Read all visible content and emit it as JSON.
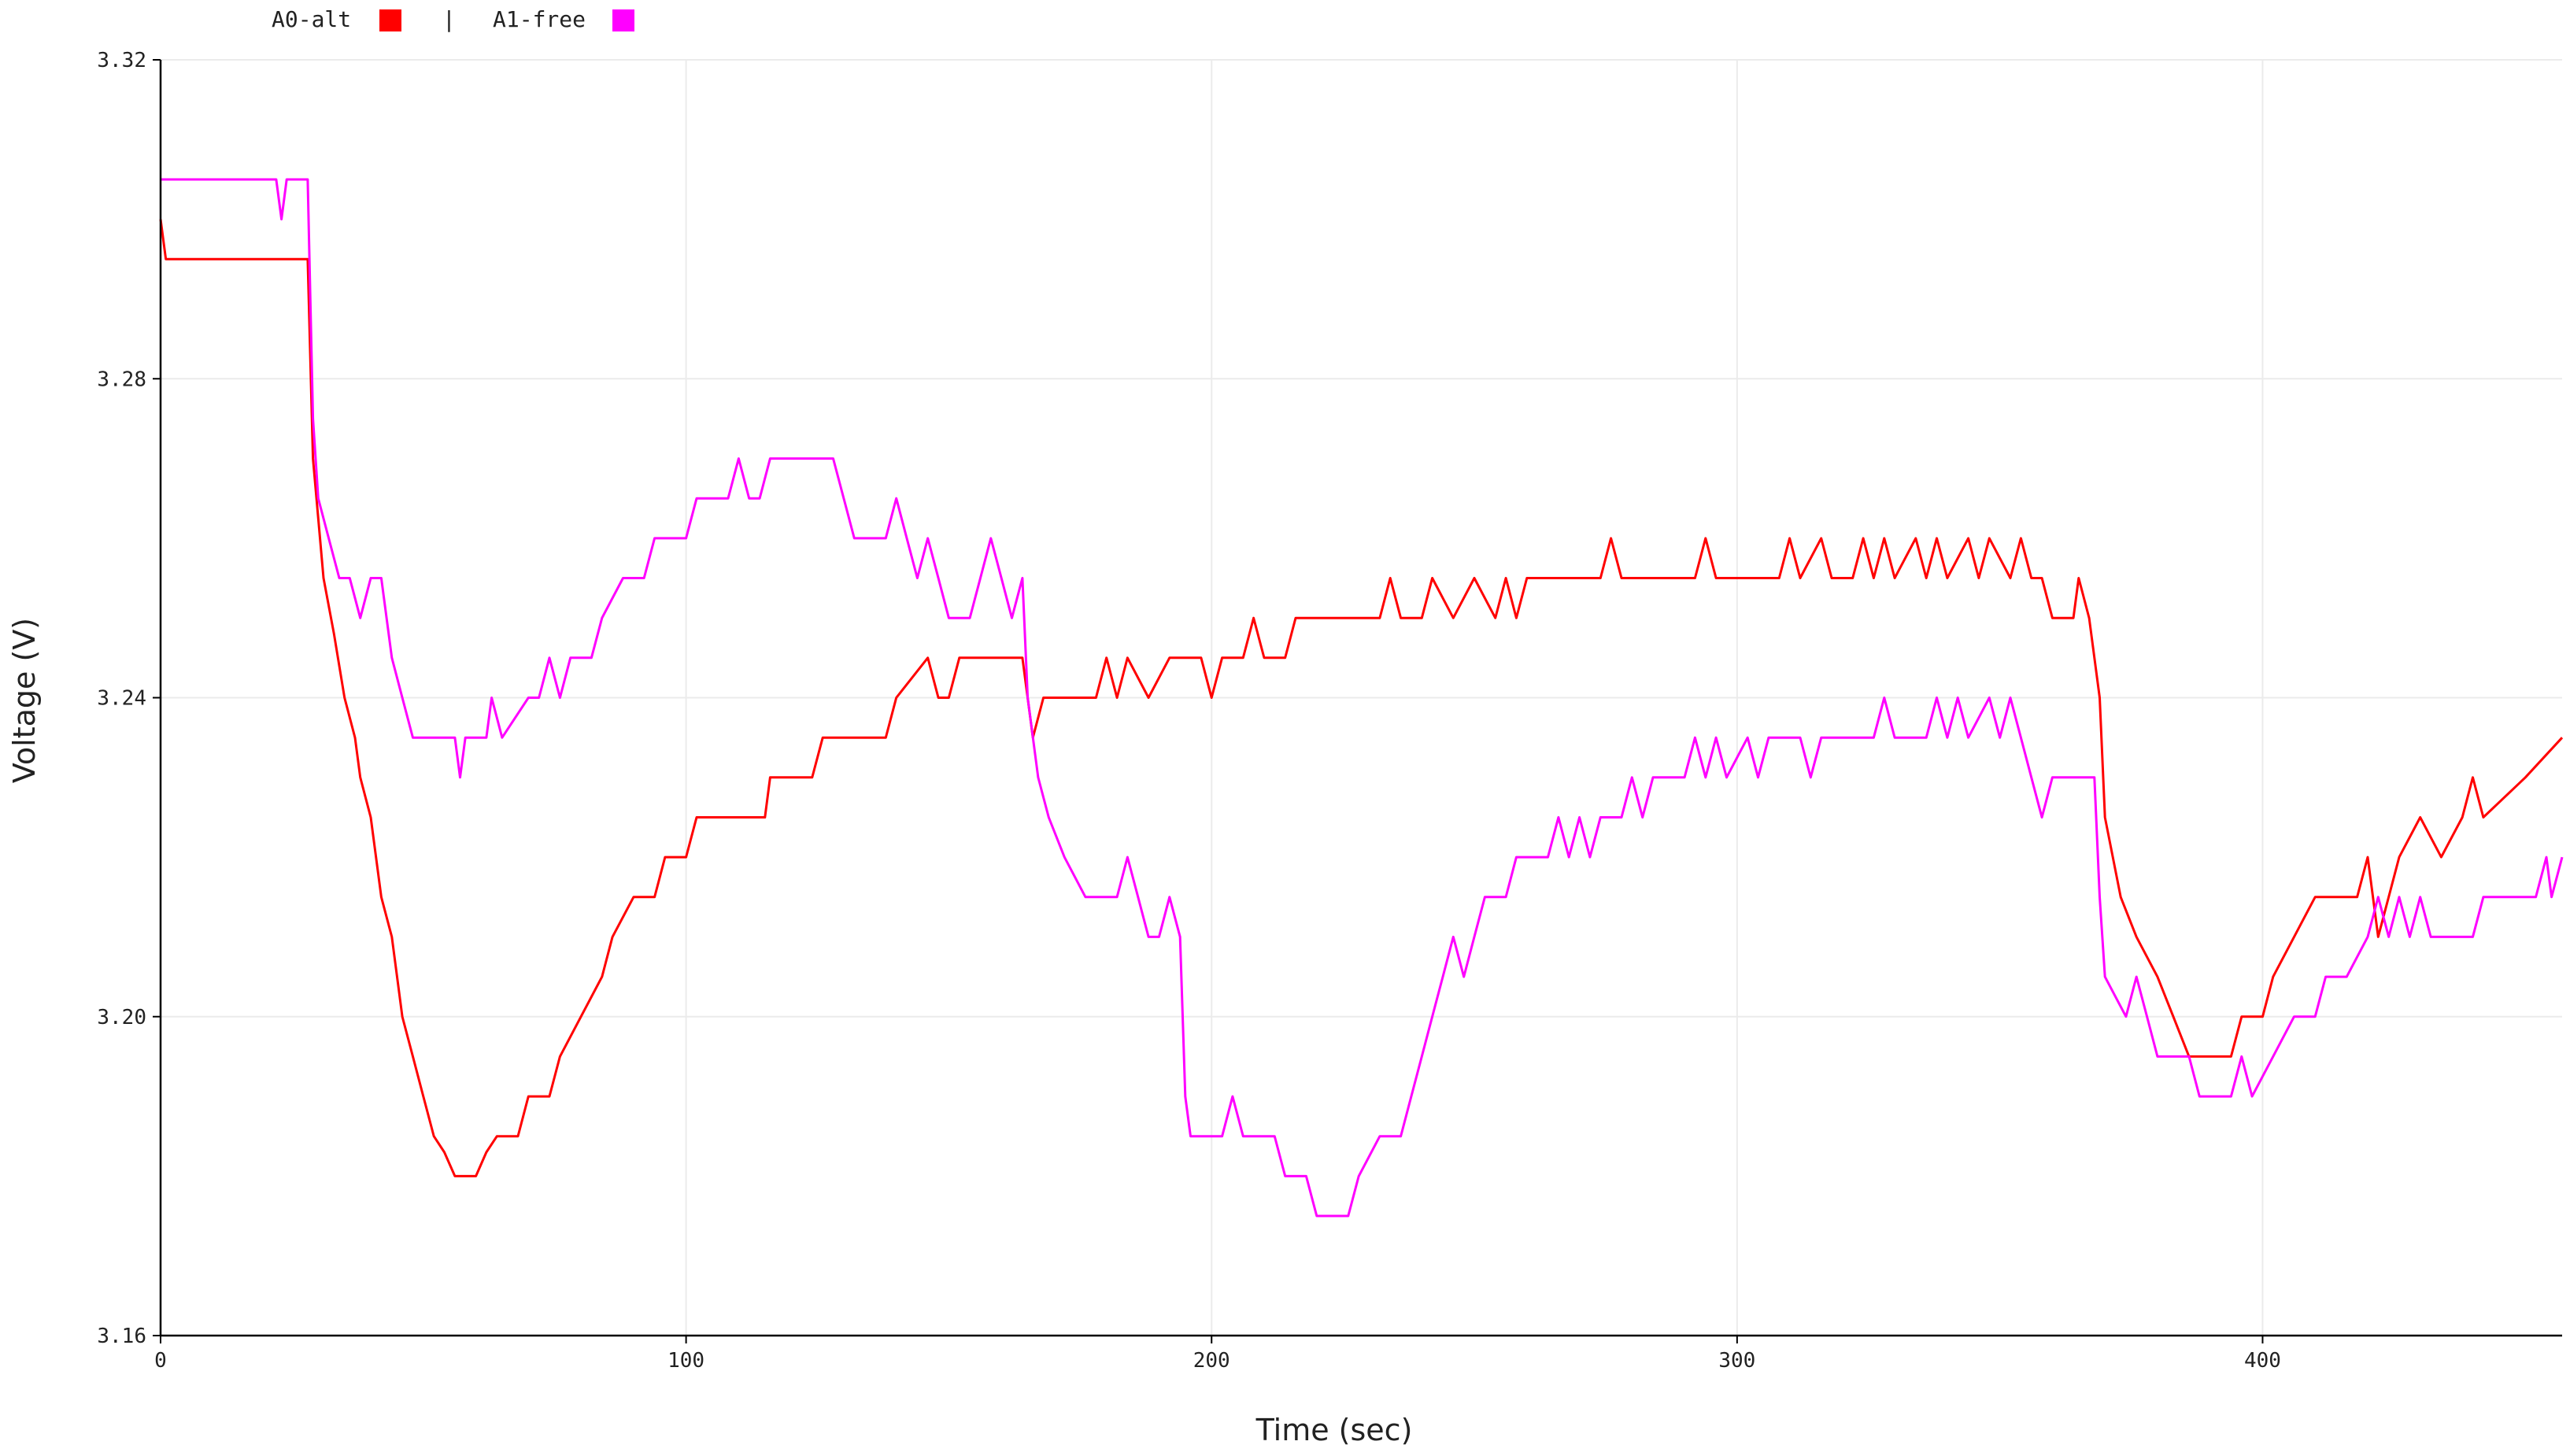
{
  "chart_data": {
    "type": "line",
    "xlabel": "Time (sec)",
    "ylabel": "Voltage (V)",
    "xlim": [
      0,
      457
    ],
    "ylim": [
      3.16,
      3.32
    ],
    "x_ticks": [
      0,
      100,
      200,
      300,
      400
    ],
    "y_ticks": [
      3.16,
      3.2,
      3.24,
      3.28,
      3.32
    ],
    "y_tick_labels": [
      "3.16",
      "3.20",
      "3.24",
      "3.28",
      "3.32"
    ],
    "grid": true,
    "legend_position": "top-left",
    "legend_separator": "|",
    "series": [
      {
        "name": "A0-alt",
        "color": "#ff0000",
        "points": [
          [
            0,
            3.3
          ],
          [
            1,
            3.295
          ],
          [
            28,
            3.295
          ],
          [
            29,
            3.27
          ],
          [
            31,
            3.255
          ],
          [
            33,
            3.248
          ],
          [
            35,
            3.24
          ],
          [
            37,
            3.235
          ],
          [
            38,
            3.23
          ],
          [
            40,
            3.225
          ],
          [
            42,
            3.215
          ],
          [
            44,
            3.21
          ],
          [
            46,
            3.2
          ],
          [
            48,
            3.195
          ],
          [
            50,
            3.19
          ],
          [
            52,
            3.185
          ],
          [
            54,
            3.183
          ],
          [
            56,
            3.18
          ],
          [
            58,
            3.18
          ],
          [
            60,
            3.18
          ],
          [
            62,
            3.183
          ],
          [
            64,
            3.185
          ],
          [
            68,
            3.185
          ],
          [
            70,
            3.19
          ],
          [
            74,
            3.19
          ],
          [
            76,
            3.195
          ],
          [
            80,
            3.2
          ],
          [
            84,
            3.205
          ],
          [
            86,
            3.21
          ],
          [
            90,
            3.215
          ],
          [
            94,
            3.215
          ],
          [
            96,
            3.22
          ],
          [
            100,
            3.22
          ],
          [
            102,
            3.225
          ],
          [
            115,
            3.225
          ],
          [
            116,
            3.23
          ],
          [
            120,
            3.23
          ],
          [
            124,
            3.23
          ],
          [
            126,
            3.235
          ],
          [
            138,
            3.235
          ],
          [
            140,
            3.24
          ],
          [
            146,
            3.245
          ],
          [
            148,
            3.24
          ],
          [
            150,
            3.24
          ],
          [
            152,
            3.245
          ],
          [
            156,
            3.245
          ],
          [
            158,
            3.245
          ],
          [
            164,
            3.245
          ],
          [
            166,
            3.235
          ],
          [
            168,
            3.24
          ],
          [
            178,
            3.24
          ],
          [
            180,
            3.245
          ],
          [
            182,
            3.24
          ],
          [
            184,
            3.245
          ],
          [
            188,
            3.24
          ],
          [
            192,
            3.245
          ],
          [
            198,
            3.245
          ],
          [
            200,
            3.24
          ],
          [
            202,
            3.245
          ],
          [
            206,
            3.245
          ],
          [
            208,
            3.25
          ],
          [
            210,
            3.245
          ],
          [
            214,
            3.245
          ],
          [
            216,
            3.25
          ],
          [
            232,
            3.25
          ],
          [
            234,
            3.255
          ],
          [
            236,
            3.25
          ],
          [
            240,
            3.25
          ],
          [
            242,
            3.255
          ],
          [
            246,
            3.25
          ],
          [
            250,
            3.255
          ],
          [
            254,
            3.25
          ],
          [
            256,
            3.255
          ],
          [
            258,
            3.25
          ],
          [
            260,
            3.255
          ],
          [
            274,
            3.255
          ],
          [
            276,
            3.26
          ],
          [
            278,
            3.255
          ],
          [
            292,
            3.255
          ],
          [
            294,
            3.26
          ],
          [
            296,
            3.255
          ],
          [
            308,
            3.255
          ],
          [
            310,
            3.26
          ],
          [
            312,
            3.255
          ],
          [
            316,
            3.26
          ],
          [
            318,
            3.255
          ],
          [
            322,
            3.255
          ],
          [
            324,
            3.26
          ],
          [
            326,
            3.255
          ],
          [
            328,
            3.26
          ],
          [
            330,
            3.255
          ],
          [
            334,
            3.26
          ],
          [
            336,
            3.255
          ],
          [
            338,
            3.26
          ],
          [
            340,
            3.255
          ],
          [
            344,
            3.26
          ],
          [
            346,
            3.255
          ],
          [
            348,
            3.26
          ],
          [
            352,
            3.255
          ],
          [
            354,
            3.26
          ],
          [
            356,
            3.255
          ],
          [
            358,
            3.255
          ],
          [
            360,
            3.25
          ],
          [
            364,
            3.25
          ],
          [
            365,
            3.255
          ],
          [
            367,
            3.25
          ],
          [
            369,
            3.24
          ],
          [
            370,
            3.225
          ],
          [
            373,
            3.215
          ],
          [
            376,
            3.21
          ],
          [
            380,
            3.205
          ],
          [
            383,
            3.2
          ],
          [
            386,
            3.195
          ],
          [
            390,
            3.195
          ],
          [
            394,
            3.195
          ],
          [
            396,
            3.2
          ],
          [
            400,
            3.2
          ],
          [
            402,
            3.205
          ],
          [
            406,
            3.21
          ],
          [
            410,
            3.215
          ],
          [
            418,
            3.215
          ],
          [
            420,
            3.22
          ],
          [
            422,
            3.21
          ],
          [
            426,
            3.22
          ],
          [
            430,
            3.225
          ],
          [
            434,
            3.22
          ],
          [
            438,
            3.225
          ],
          [
            440,
            3.23
          ],
          [
            442,
            3.225
          ],
          [
            450,
            3.23
          ],
          [
            457,
            3.235
          ]
        ]
      },
      {
        "name": "A1-free",
        "color": "#ff00ff",
        "points": [
          [
            0,
            3.305
          ],
          [
            22,
            3.305
          ],
          [
            23,
            3.3
          ],
          [
            24,
            3.305
          ],
          [
            28,
            3.305
          ],
          [
            29,
            3.275
          ],
          [
            30,
            3.265
          ],
          [
            32,
            3.26
          ],
          [
            34,
            3.255
          ],
          [
            36,
            3.255
          ],
          [
            38,
            3.25
          ],
          [
            40,
            3.255
          ],
          [
            42,
            3.255
          ],
          [
            44,
            3.245
          ],
          [
            46,
            3.24
          ],
          [
            48,
            3.235
          ],
          [
            50,
            3.235
          ],
          [
            56,
            3.235
          ],
          [
            57,
            3.23
          ],
          [
            58,
            3.235
          ],
          [
            62,
            3.235
          ],
          [
            63,
            3.24
          ],
          [
            65,
            3.235
          ],
          [
            70,
            3.24
          ],
          [
            72,
            3.24
          ],
          [
            74,
            3.245
          ],
          [
            76,
            3.24
          ],
          [
            78,
            3.245
          ],
          [
            80,
            3.245
          ],
          [
            82,
            3.245
          ],
          [
            84,
            3.25
          ],
          [
            88,
            3.255
          ],
          [
            92,
            3.255
          ],
          [
            94,
            3.26
          ],
          [
            100,
            3.26
          ],
          [
            102,
            3.265
          ],
          [
            108,
            3.265
          ],
          [
            110,
            3.27
          ],
          [
            112,
            3.265
          ],
          [
            114,
            3.265
          ],
          [
            116,
            3.27
          ],
          [
            128,
            3.27
          ],
          [
            130,
            3.265
          ],
          [
            132,
            3.26
          ],
          [
            138,
            3.26
          ],
          [
            140,
            3.265
          ],
          [
            142,
            3.26
          ],
          [
            144,
            3.255
          ],
          [
            146,
            3.26
          ],
          [
            148,
            3.255
          ],
          [
            150,
            3.25
          ],
          [
            154,
            3.25
          ],
          [
            156,
            3.255
          ],
          [
            158,
            3.26
          ],
          [
            160,
            3.255
          ],
          [
            162,
            3.25
          ],
          [
            164,
            3.255
          ],
          [
            165,
            3.24
          ],
          [
            167,
            3.23
          ],
          [
            169,
            3.225
          ],
          [
            172,
            3.22
          ],
          [
            176,
            3.215
          ],
          [
            182,
            3.215
          ],
          [
            184,
            3.22
          ],
          [
            186,
            3.215
          ],
          [
            188,
            3.21
          ],
          [
            190,
            3.21
          ],
          [
            192,
            3.215
          ],
          [
            194,
            3.21
          ],
          [
            195,
            3.19
          ],
          [
            196,
            3.185
          ],
          [
            202,
            3.185
          ],
          [
            204,
            3.19
          ],
          [
            206,
            3.185
          ],
          [
            212,
            3.185
          ],
          [
            214,
            3.18
          ],
          [
            218,
            3.18
          ],
          [
            220,
            3.175
          ],
          [
            222,
            3.175
          ],
          [
            226,
            3.175
          ],
          [
            228,
            3.18
          ],
          [
            232,
            3.185
          ],
          [
            236,
            3.185
          ],
          [
            238,
            3.19
          ],
          [
            240,
            3.195
          ],
          [
            242,
            3.2
          ],
          [
            244,
            3.205
          ],
          [
            246,
            3.21
          ],
          [
            248,
            3.205
          ],
          [
            250,
            3.21
          ],
          [
            252,
            3.215
          ],
          [
            256,
            3.215
          ],
          [
            258,
            3.22
          ],
          [
            264,
            3.22
          ],
          [
            266,
            3.225
          ],
          [
            268,
            3.22
          ],
          [
            270,
            3.225
          ],
          [
            272,
            3.22
          ],
          [
            274,
            3.225
          ],
          [
            278,
            3.225
          ],
          [
            280,
            3.23
          ],
          [
            282,
            3.225
          ],
          [
            284,
            3.23
          ],
          [
            290,
            3.23
          ],
          [
            292,
            3.235
          ],
          [
            294,
            3.23
          ],
          [
            296,
            3.235
          ],
          [
            298,
            3.23
          ],
          [
            302,
            3.235
          ],
          [
            304,
            3.23
          ],
          [
            306,
            3.235
          ],
          [
            312,
            3.235
          ],
          [
            314,
            3.23
          ],
          [
            316,
            3.235
          ],
          [
            326,
            3.235
          ],
          [
            328,
            3.24
          ],
          [
            330,
            3.235
          ],
          [
            336,
            3.235
          ],
          [
            338,
            3.24
          ],
          [
            340,
            3.235
          ],
          [
            342,
            3.24
          ],
          [
            344,
            3.235
          ],
          [
            348,
            3.24
          ],
          [
            350,
            3.235
          ],
          [
            352,
            3.24
          ],
          [
            354,
            3.235
          ],
          [
            356,
            3.23
          ],
          [
            358,
            3.225
          ],
          [
            360,
            3.23
          ],
          [
            368,
            3.23
          ],
          [
            369,
            3.215
          ],
          [
            370,
            3.205
          ],
          [
            374,
            3.2
          ],
          [
            376,
            3.205
          ],
          [
            378,
            3.2
          ],
          [
            380,
            3.195
          ],
          [
            386,
            3.195
          ],
          [
            388,
            3.19
          ],
          [
            394,
            3.19
          ],
          [
            396,
            3.195
          ],
          [
            398,
            3.19
          ],
          [
            402,
            3.195
          ],
          [
            406,
            3.2
          ],
          [
            410,
            3.2
          ],
          [
            412,
            3.205
          ],
          [
            416,
            3.205
          ],
          [
            420,
            3.21
          ],
          [
            422,
            3.215
          ],
          [
            424,
            3.21
          ],
          [
            426,
            3.215
          ],
          [
            428,
            3.21
          ],
          [
            430,
            3.215
          ],
          [
            432,
            3.21
          ],
          [
            440,
            3.21
          ],
          [
            442,
            3.215
          ],
          [
            452,
            3.215
          ],
          [
            454,
            3.22
          ],
          [
            455,
            3.215
          ],
          [
            457,
            3.22
          ]
        ]
      }
    ]
  }
}
